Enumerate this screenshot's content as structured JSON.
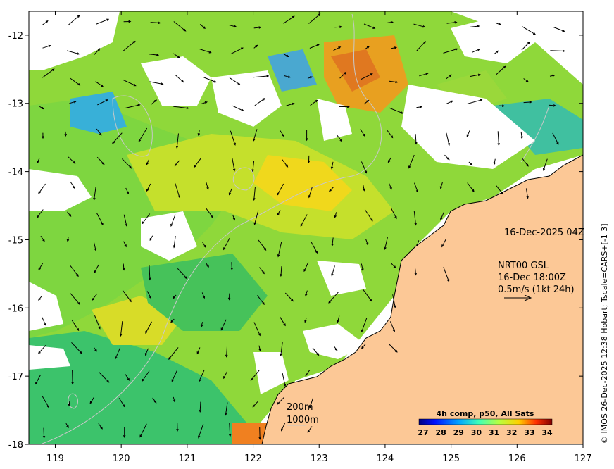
{
  "map": {
    "lon_ticks": [
      "119",
      "120",
      "121",
      "122",
      "123",
      "124",
      "125",
      "126",
      "127"
    ],
    "lat_ticks": [
      "-12",
      "-13",
      "-14",
      "-15",
      "-16",
      "-17",
      "-18"
    ],
    "date_label": "16-Dec-2025 04Z",
    "current_lines": [
      "NRT00 GSL",
      "16-Dec 18:00Z",
      "0.5m/s (1kt 24h)"
    ],
    "contour_labels": [
      "200m",
      "1000m"
    ],
    "land_color": "#fcc896",
    "contour_color": "#c8c8c8"
  },
  "colorbar": {
    "title": "4h comp, p50, All Sats",
    "ticks": [
      "27",
      "28",
      "29",
      "30",
      "31",
      "32",
      "33",
      "34"
    ],
    "colors": [
      "#00007f",
      "#0010ff",
      "#00a4ff",
      "#40ffb7",
      "#b7ff40",
      "#ffb900",
      "#ff3000",
      "#7f0000"
    ]
  },
  "credit": "© IMOS 26-Dec-2025 12:38 Hobart; Tscale=CARS+[-1 3]"
}
